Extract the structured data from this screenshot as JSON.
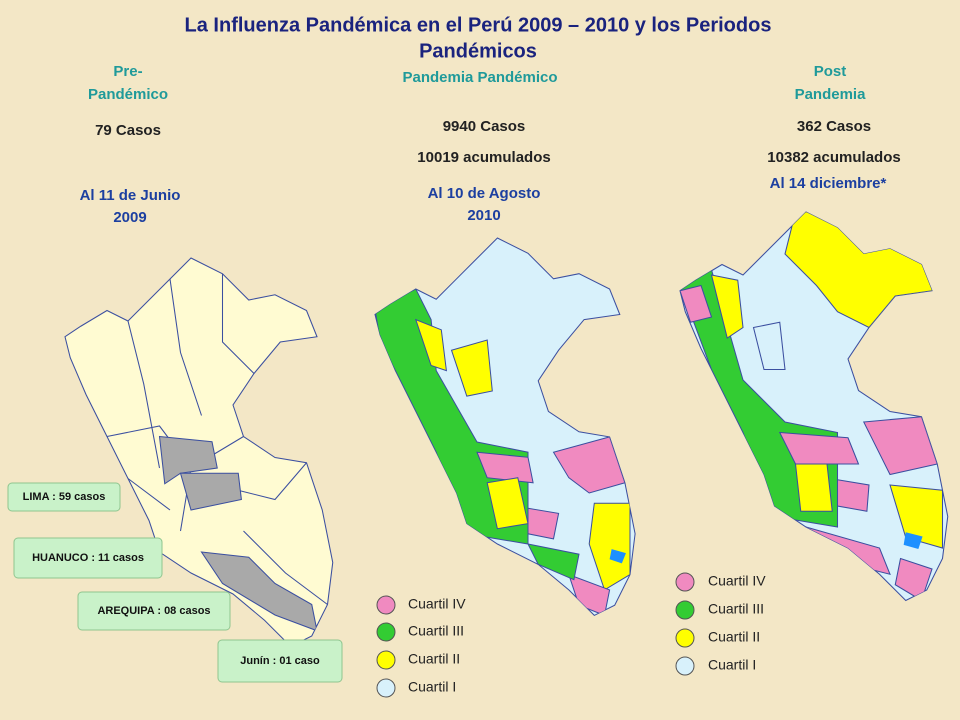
{
  "title_lines": [
    "La Influenza Pandémica en el Perú 2009 – 2010 y los Periodos",
    "Pandémicos"
  ],
  "panels": [
    {
      "heading_lines": [
        "Pre-",
        "Pandémico"
      ],
      "cases": "79 Casos",
      "date_lines": [
        "Al 11 de Junio",
        "2009"
      ]
    },
    {
      "heading_lines": [
        "Pandemia  Pandémico"
      ],
      "cases": "9940 Casos",
      "cumulative": "10019 acumulados",
      "date_lines": [
        "Al 10 de Agosto",
        "2010"
      ]
    },
    {
      "heading_lines": [
        "Post",
        "Pandemia"
      ],
      "cases": "362 Casos",
      "cumulative": "10382 acumulados",
      "date_lines": [
        "Al 14 diciembre*"
      ]
    }
  ],
  "callouts": [
    "LIMA : 59 casos",
    "HUANUCO : 11 casos",
    "AREQUIPA : 08 casos",
    "Junín : 01 caso"
  ],
  "legends": [
    [
      "Cuartil IV",
      "Cuartil III",
      "Cuartil II",
      "Cuartil I"
    ],
    [
      "Cuartil IV",
      "Cuartil III",
      "Cuartil II",
      "Cuartil I"
    ]
  ]
}
